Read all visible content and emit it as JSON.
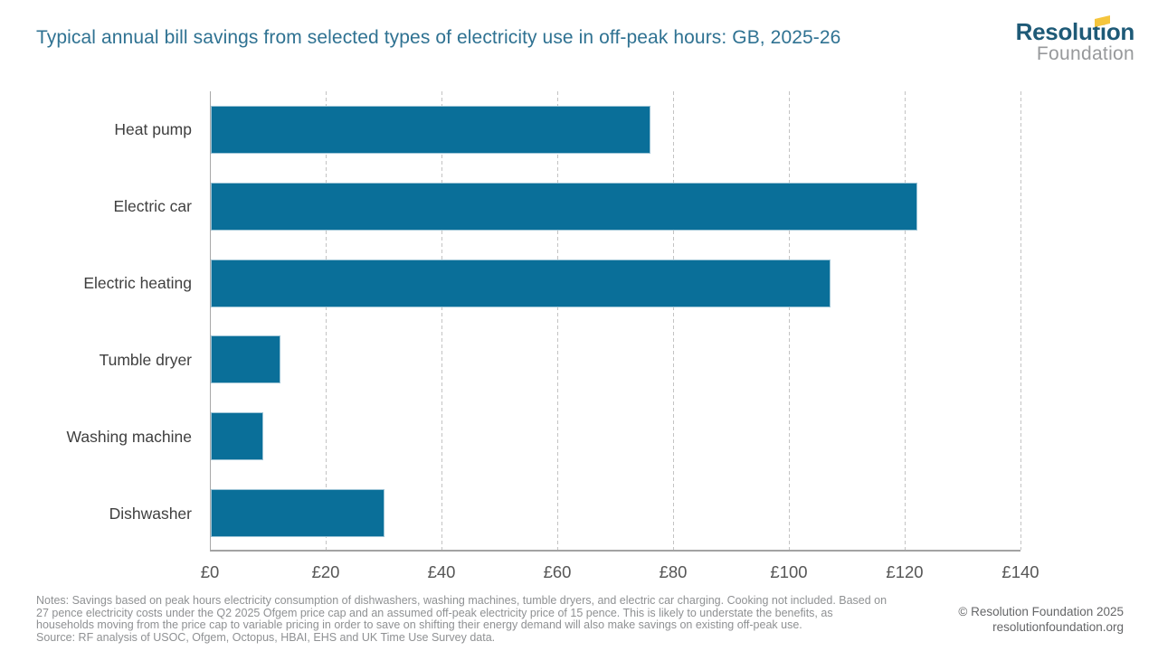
{
  "header": {
    "logo": {
      "brand": "Resolution",
      "sub": "Foundation",
      "brand_color": "#1e5a77",
      "sub_color": "#97999b",
      "flag_color": "#f5c53d"
    }
  },
  "chart_data": {
    "type": "bar",
    "orientation": "horizontal",
    "title": "Typical annual bill savings from selected types of electricity use in off-peak hours: GB, 2025-26",
    "categories": [
      "Heat pump",
      "Electric car",
      "Electric heating",
      "Tumble dryer",
      "Washing machine",
      "Dishwasher"
    ],
    "values": [
      76,
      122,
      107,
      12,
      9,
      30
    ],
    "unit": "£",
    "xlim": [
      0,
      140
    ],
    "xticks": [
      0,
      20,
      40,
      60,
      80,
      100,
      120,
      140
    ],
    "xtick_labels": [
      "£0",
      "£20",
      "£40",
      "£60",
      "£80",
      "£100",
      "£120",
      "£140"
    ],
    "grid": "vertical dashed",
    "legend": "none",
    "bar_color": "#0a6f99",
    "title_color": "#2f7292"
  },
  "footer": {
    "notes_lines": [
      "Notes: Savings based on peak hours electricity consumption of dishwashers, washing machines, tumble dryers, and electric car charging. Cooking not included. Based on",
      "27 pence electricity costs under the Q2 2025 Ofgem price cap and an assumed off-peak electricity price of 15 pence. This is likely to understate the benefits, as",
      "households moving from the price cap to variable pricing in order to save on shifting their energy demand will also make savings on existing off-peak use."
    ],
    "source": "Source: RF analysis of USOC, Ofgem, Octopus, HBAI, EHS and UK Time Use Survey data.",
    "copyright": "© Resolution Foundation 2025",
    "website": "resolutionfoundation.org"
  }
}
